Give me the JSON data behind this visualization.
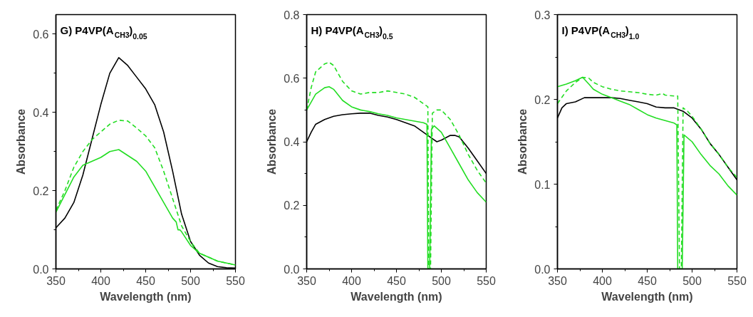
{
  "chart_data": [
    {
      "type": "line",
      "title": "G) P4VP(A$_{CH3}$)$_{0.05}$",
      "xlabel": "Wavelength (nm)",
      "ylabel": "Absorbance",
      "xlim": [
        350,
        550
      ],
      "ylim": [
        0,
        0.65
      ],
      "xticks": [
        350,
        {
          "value": 375,
          "label": null
        },
        400,
        {
          "value": 425,
          "label": null
        },
        450,
        {
          "value": 475,
          "label": null
        },
        500,
        {
          "value": 525,
          "label": null
        },
        550
      ],
      "yticks": [
        {
          "value": 0,
          "label": "0.0"
        },
        {
          "value": 0.1,
          "label": null
        },
        0.2,
        {
          "value": 0.3,
          "label": null
        },
        0.4,
        {
          "value": 0.5,
          "label": null
        },
        0.6
      ],
      "grid": false,
      "series": [
        {
          "color": "#000000",
          "line_style": "solid",
          "x": [
            350,
            360,
            370,
            380,
            390,
            400,
            410,
            420,
            430,
            440,
            450,
            460,
            470,
            480,
            490,
            500,
            510,
            520,
            530,
            540,
            550
          ],
          "values": [
            0.105,
            0.13,
            0.17,
            0.24,
            0.33,
            0.42,
            0.5,
            0.54,
            0.52,
            0.49,
            0.46,
            0.42,
            0.35,
            0.25,
            0.14,
            0.07,
            0.035,
            0.015,
            0.006,
            0.003,
            0.002
          ]
        },
        {
          "color": "#22dd22",
          "line_style": "dashed",
          "x": [
            350,
            360,
            370,
            380,
            390,
            400,
            410,
            420,
            430,
            440,
            450,
            460,
            470,
            480,
            490,
            500,
            510,
            520,
            530,
            540,
            550
          ],
          "values": [
            0.15,
            0.2,
            0.26,
            0.3,
            0.33,
            0.35,
            0.37,
            0.38,
            0.378,
            0.36,
            0.34,
            0.31,
            0.25,
            0.18,
            0.11,
            0.07,
            0.04,
            0.03,
            0.02,
            0.015,
            0.01
          ]
        },
        {
          "color": "#22dd22",
          "line_style": "solid",
          "x": [
            350,
            360,
            370,
            380,
            390,
            400,
            410,
            420,
            430,
            440,
            450,
            460,
            470,
            480,
            484,
            486,
            488,
            490,
            500,
            510,
            520,
            530,
            540,
            550
          ],
          "values": [
            0.145,
            0.19,
            0.235,
            0.265,
            0.275,
            0.285,
            0.3,
            0.305,
            0.29,
            0.275,
            0.25,
            0.21,
            0.17,
            0.13,
            0.12,
            0.1,
            0.1,
            0.095,
            0.06,
            0.04,
            0.03,
            0.02,
            0.015,
            0.01
          ]
        }
      ]
    },
    {
      "type": "line",
      "title": "H) P4VP(A$_{CH3}$)$_{0.5}$",
      "xlabel": "Wavelength (nm)",
      "ylabel": "Absorbance",
      "xlim": [
        350,
        550
      ],
      "ylim": [
        0,
        0.8
      ],
      "xticks": [
        350,
        {
          "value": 375,
          "label": null
        },
        400,
        {
          "value": 425,
          "label": null
        },
        450,
        {
          "value": 475,
          "label": null
        },
        500,
        {
          "value": 525,
          "label": null
        },
        550
      ],
      "yticks": [
        {
          "value": 0,
          "label": "0.0"
        },
        {
          "value": 0.1,
          "label": null
        },
        0.2,
        {
          "value": 0.3,
          "label": null
        },
        0.4,
        {
          "value": 0.5,
          "label": null
        },
        0.6,
        {
          "value": 0.7,
          "label": null
        },
        0.8
      ],
      "grid": false,
      "series": [
        {
          "color": "#000000",
          "line_style": "solid",
          "x": [
            350,
            355,
            360,
            370,
            380,
            390,
            400,
            410,
            420,
            430,
            440,
            450,
            460,
            470,
            480,
            490,
            495,
            500,
            510,
            515,
            520,
            530,
            540,
            550
          ],
          "values": [
            0.4,
            0.43,
            0.455,
            0.47,
            0.48,
            0.485,
            0.488,
            0.49,
            0.49,
            0.483,
            0.478,
            0.47,
            0.46,
            0.45,
            0.43,
            0.41,
            0.4,
            0.405,
            0.42,
            0.42,
            0.415,
            0.38,
            0.34,
            0.3
          ]
        },
        {
          "color": "#22dd22",
          "line_style": "dashed",
          "x": [
            350,
            355,
            360,
            370,
            375,
            380,
            390,
            400,
            410,
            420,
            430,
            440,
            450,
            460,
            470,
            480,
            485,
            486,
            488,
            490,
            495,
            500,
            510,
            520,
            530,
            540,
            550
          ],
          "values": [
            0.5,
            0.57,
            0.62,
            0.645,
            0.65,
            0.64,
            0.59,
            0.56,
            0.55,
            0.555,
            0.555,
            0.56,
            0.555,
            0.55,
            0.54,
            0.52,
            0.51,
            0.0,
            0.0,
            0.49,
            0.5,
            0.5,
            0.47,
            0.42,
            0.36,
            0.31,
            0.27
          ]
        },
        {
          "color": "#22dd22",
          "line_style": "solid",
          "x": [
            350,
            360,
            370,
            375,
            380,
            390,
            400,
            410,
            420,
            430,
            440,
            450,
            460,
            470,
            480,
            484,
            485,
            487,
            489,
            492,
            500,
            510,
            520,
            530,
            540,
            550
          ],
          "values": [
            0.5,
            0.55,
            0.57,
            0.573,
            0.565,
            0.53,
            0.51,
            0.5,
            0.495,
            0.488,
            0.483,
            0.475,
            0.47,
            0.465,
            0.46,
            0.455,
            0.0,
            0.0,
            0.44,
            0.45,
            0.43,
            0.38,
            0.33,
            0.28,
            0.24,
            0.21
          ]
        }
      ]
    },
    {
      "type": "line",
      "title": "I) P4VP(A$_{CH3}$)$_{1.0}$",
      "xlabel": "Wavelength (nm)",
      "ylabel": "Absorbance",
      "xlim": [
        350,
        550
      ],
      "ylim": [
        0,
        0.3
      ],
      "xticks": [
        350,
        {
          "value": 375,
          "label": null
        },
        400,
        {
          "value": 425,
          "label": null
        },
        450,
        {
          "value": 475,
          "label": null
        },
        500,
        {
          "value": 525,
          "label": null
        },
        550
      ],
      "yticks": [
        {
          "value": 0,
          "label": "0.0"
        },
        {
          "value": 0.05,
          "label": null
        },
        0.1,
        {
          "value": 0.15,
          "label": null
        },
        0.2,
        {
          "value": 0.25,
          "label": null
        },
        0.3
      ],
      "grid": false,
      "series": [
        {
          "color": "#000000",
          "line_style": "solid",
          "x": [
            350,
            355,
            360,
            370,
            380,
            390,
            400,
            410,
            420,
            430,
            440,
            450,
            460,
            470,
            480,
            490,
            500,
            510,
            520,
            530,
            540,
            550
          ],
          "values": [
            0.178,
            0.19,
            0.195,
            0.197,
            0.202,
            0.202,
            0.202,
            0.202,
            0.201,
            0.199,
            0.197,
            0.195,
            0.191,
            0.19,
            0.19,
            0.186,
            0.178,
            0.165,
            0.148,
            0.135,
            0.12,
            0.105
          ]
        },
        {
          "color": "#22dd22",
          "line_style": "dashed",
          "x": [
            350,
            360,
            370,
            378,
            385,
            390,
            400,
            410,
            420,
            430,
            440,
            450,
            460,
            467,
            470,
            480,
            484,
            486,
            488,
            490,
            495,
            500,
            510,
            520,
            530,
            540,
            550
          ],
          "values": [
            0.195,
            0.21,
            0.22,
            0.226,
            0.225,
            0.22,
            0.215,
            0.212,
            0.21,
            0.209,
            0.208,
            0.206,
            0.205,
            0.207,
            0.205,
            0.204,
            0.204,
            0.0,
            0.0,
            0.19,
            0.186,
            0.18,
            0.165,
            0.148,
            0.135,
            0.12,
            0.108
          ]
        },
        {
          "color": "#22dd22",
          "line_style": "solid",
          "x": [
            350,
            360,
            370,
            378,
            385,
            390,
            400,
            410,
            420,
            430,
            440,
            450,
            460,
            470,
            480,
            483,
            484,
            486,
            489,
            491,
            500,
            510,
            520,
            530,
            540,
            550
          ],
          "values": [
            0.215,
            0.218,
            0.222,
            0.226,
            0.218,
            0.212,
            0.206,
            0.202,
            0.198,
            0.194,
            0.188,
            0.182,
            0.178,
            0.175,
            0.172,
            0.17,
            0.0,
            0.0,
            0.0,
            0.158,
            0.15,
            0.135,
            0.122,
            0.112,
            0.098,
            0.087
          ]
        }
      ]
    }
  ]
}
